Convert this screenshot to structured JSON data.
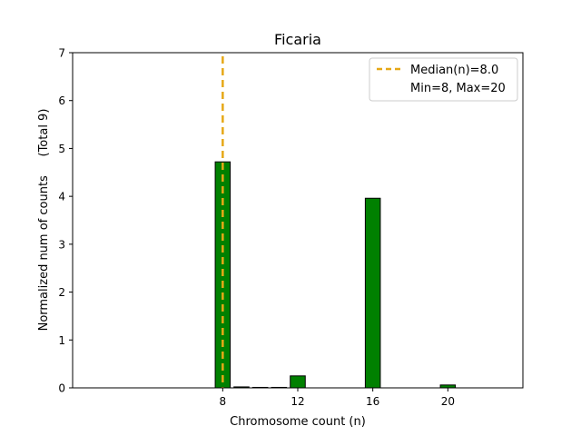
{
  "chart_data": {
    "type": "bar",
    "title": "Ficaria",
    "xlabel": "Chromosome count (n)",
    "ylabel": "Normalized num of counts     (Total 9)",
    "xlim": [
      0,
      24
    ],
    "ylim": [
      0,
      7
    ],
    "x_ticks": [
      8,
      12,
      16,
      20
    ],
    "y_ticks": [
      0,
      1,
      2,
      3,
      4,
      5,
      6,
      7
    ],
    "bar_width": 0.8,
    "bars": [
      {
        "x": 8,
        "value": 4.72
      },
      {
        "x": 9,
        "value": 0.02
      },
      {
        "x": 10,
        "value": 0.01
      },
      {
        "x": 11,
        "value": 0.01
      },
      {
        "x": 12,
        "value": 0.25
      },
      {
        "x": 16,
        "value": 3.96
      },
      {
        "x": 20,
        "value": 0.06
      }
    ],
    "median_line": {
      "x": 8.0,
      "color": "#e6a817"
    },
    "bar_color": "#008000",
    "bar_edge_color": "#000000",
    "grid": false,
    "legend": {
      "placement": "top-right",
      "entries": [
        "Median(n)=8.0",
        "Min=8, Max=20"
      ]
    }
  }
}
